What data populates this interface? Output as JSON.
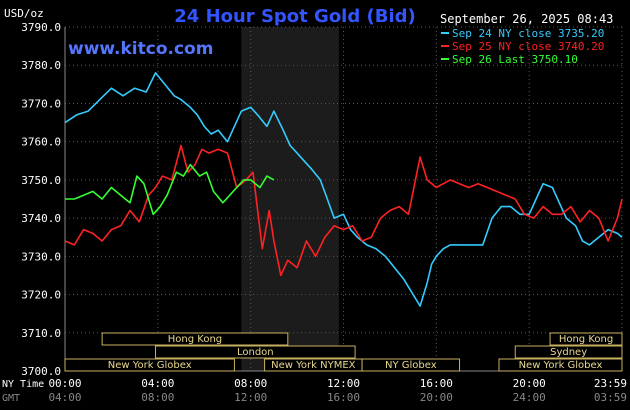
{
  "chart_data": {
    "type": "line",
    "title": "24 Hour Spot Gold (Bid)",
    "source_label": "www.kitco.com",
    "ylabel": "USD/oz",
    "datetime": "September 26, 2025 08:43",
    "ylim": [
      3700,
      3790
    ],
    "y_ticks": [
      "3790.0",
      "3780.0",
      "3770.0",
      "3760.0",
      "3750.0",
      "3740.0",
      "3730.0",
      "3720.0",
      "3710.0",
      "3700.0"
    ],
    "x_range_hours": [
      0,
      24
    ],
    "x_row_ny": {
      "label": "NY Time",
      "ticks": [
        "00:00",
        "04:00",
        "08:00",
        "12:00",
        "16:00",
        "20:00",
        "23:59"
      ]
    },
    "x_row_gmt": {
      "label": "GMT",
      "ticks": [
        "04:00",
        "08:00",
        "12:00",
        "16:00",
        "20:00",
        "24:00",
        "03:59"
      ]
    },
    "shaded_range_hours": [
      7.6,
      11.8
    ],
    "grid": true,
    "legend_position": "top-right",
    "series": [
      {
        "name": "Sep 24 NY close 3735.20",
        "color": "#33ccff",
        "x": [
          0,
          0.5,
          1,
          1.5,
          2,
          2.5,
          3,
          3.5,
          3.9,
          4.3,
          4.7,
          5,
          5.4,
          5.7,
          6,
          6.3,
          6.6,
          7,
          7.3,
          7.6,
          8,
          8.3,
          8.7,
          9,
          9.4,
          9.7,
          10,
          10.3,
          10.6,
          11,
          11.3,
          11.6,
          12,
          12.3,
          12.6,
          13,
          13.4,
          13.8,
          14.2,
          14.6,
          15,
          15.3,
          15.6,
          15.8,
          16,
          16.3,
          16.6,
          17,
          17.3,
          17.6,
          18,
          18.4,
          18.8,
          19.2,
          19.6,
          20,
          20.3,
          20.6,
          21,
          21.3,
          21.6,
          22,
          22.3,
          22.6,
          23,
          23.4,
          23.8,
          24
        ],
        "values": [
          3765,
          3767,
          3768,
          3771,
          3774,
          3772,
          3774,
          3773,
          3778,
          3775,
          3772,
          3771,
          3769,
          3767,
          3764,
          3762,
          3763,
          3760,
          3764,
          3768,
          3769,
          3767,
          3764,
          3768,
          3763,
          3759,
          3757,
          3755,
          3753,
          3750,
          3745,
          3740,
          3741,
          3737,
          3735,
          3733,
          3732,
          3730,
          3727,
          3724,
          3720,
          3717,
          3723,
          3728,
          3730,
          3732,
          3733,
          3733,
          3733,
          3733,
          3733,
          3740,
          3743,
          3743,
          3741,
          3741,
          3745,
          3749,
          3748,
          3744,
          3740,
          3738,
          3734,
          3733,
          3735,
          3737,
          3736,
          3735
        ]
      },
      {
        "name": "Sep 25 NY close 3740.20",
        "color": "#ff2222",
        "x": [
          0,
          0.4,
          0.8,
          1.2,
          1.6,
          2,
          2.4,
          2.8,
          3.2,
          3.6,
          3.9,
          4.2,
          4.6,
          5,
          5.3,
          5.6,
          5.9,
          6.2,
          6.6,
          7,
          7.4,
          7.8,
          8.1,
          8.5,
          8.8,
          9,
          9.3,
          9.6,
          10,
          10.4,
          10.8,
          11.2,
          11.6,
          12,
          12.4,
          12.8,
          13.2,
          13.6,
          14,
          14.4,
          14.8,
          15,
          15.3,
          15.6,
          16,
          16.3,
          16.6,
          17,
          17.4,
          17.8,
          18.2,
          18.6,
          19,
          19.4,
          19.8,
          20.2,
          20.6,
          21,
          21.4,
          21.8,
          22.2,
          22.6,
          23,
          23.4,
          23.8,
          24
        ],
        "values": [
          3734,
          3733,
          3737,
          3736,
          3734,
          3737,
          3738,
          3742,
          3739,
          3746,
          3748,
          3751,
          3750,
          3759,
          3752,
          3754,
          3758,
          3757,
          3758,
          3757,
          3748,
          3750,
          3752,
          3732,
          3742,
          3734,
          3725,
          3729,
          3727,
          3734,
          3730,
          3735,
          3738,
          3737,
          3738,
          3734,
          3735,
          3740,
          3742,
          3743,
          3741,
          3747,
          3756,
          3750,
          3748,
          3749,
          3750,
          3749,
          3748,
          3749,
          3748,
          3747,
          3746,
          3745,
          3741,
          3740,
          3743,
          3741,
          3741,
          3743,
          3739,
          3742,
          3740,
          3734,
          3740,
          3745
        ]
      },
      {
        "name": "Sep 26 Last 3750.10",
        "color": "#33ff33",
        "x": [
          0,
          0.4,
          0.8,
          1.2,
          1.6,
          2,
          2.4,
          2.8,
          3.1,
          3.4,
          3.8,
          4.1,
          4.4,
          4.8,
          5.1,
          5.4,
          5.8,
          6.1,
          6.4,
          6.8,
          7.1,
          7.4,
          7.7,
          8,
          8.4,
          8.7,
          9
        ],
        "values": [
          3745,
          3745,
          3746,
          3747,
          3745,
          3748,
          3746,
          3744,
          3751,
          3749,
          3741,
          3743,
          3746,
          3752,
          3751,
          3754,
          3751,
          3752,
          3747,
          3744,
          3746,
          3748,
          3750,
          3750,
          3748,
          3751,
          3750
        ]
      }
    ],
    "sessions_top": [
      {
        "label": "Hong Kong",
        "start": 1.6,
        "end": 9.6
      },
      {
        "label": "Hong Kong",
        "start": 20.9,
        "end": 24
      }
    ],
    "sessions_mid": [
      {
        "label": "London",
        "start": 3.9,
        "end": 12.5
      },
      {
        "label": "Sydney",
        "start": 19.4,
        "end": 24
      }
    ],
    "sessions_bottom": [
      {
        "label": "New York Globex",
        "start": 0,
        "end": 7.3
      },
      {
        "label": "New York NYMEX",
        "start": 8.6,
        "end": 12.8
      },
      {
        "label": "NY Globex",
        "start": 12.8,
        "end": 17.0
      },
      {
        "label": "New York Globex",
        "start": 18.7,
        "end": 24
      }
    ]
  }
}
